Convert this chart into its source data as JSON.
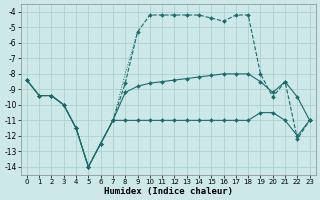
{
  "xlabel": "Humidex (Indice chaleur)",
  "bg_color": "#cce8e8",
  "grid_color": "#aacccc",
  "line_color": "#1a6b6b",
  "xlim": [
    -0.5,
    23.5
  ],
  "ylim": [
    -14.5,
    -3.5
  ],
  "xticks": [
    0,
    1,
    2,
    3,
    4,
    5,
    6,
    7,
    8,
    9,
    10,
    11,
    12,
    13,
    14,
    15,
    16,
    17,
    18,
    19,
    20,
    21,
    22,
    23
  ],
  "yticks": [
    -4,
    -5,
    -6,
    -7,
    -8,
    -9,
    -10,
    -11,
    -12,
    -13,
    -14
  ],
  "line1_x": [
    0,
    1,
    2,
    3,
    4,
    5,
    6,
    7,
    8,
    9,
    10,
    11,
    12,
    13,
    14,
    15,
    16,
    17,
    18,
    19,
    20,
    21,
    22,
    23
  ],
  "line1_y": [
    -8.4,
    -9.4,
    -9.4,
    -10.0,
    -11.5,
    -14.0,
    -12.5,
    -11.0,
    -8.6,
    -5.3,
    -4.2,
    -4.2,
    -4.2,
    -4.2,
    -4.2,
    -4.4,
    -4.6,
    -4.2,
    -4.2,
    -8.0,
    -9.5,
    -8.5,
    -12.2,
    -11.0
  ],
  "line1_style": "--",
  "line2_x": [
    0,
    1,
    2,
    3,
    4,
    5,
    6,
    7,
    8,
    9,
    10,
    11,
    12,
    13,
    14,
    15,
    16,
    17,
    18,
    19,
    20,
    21,
    22,
    23
  ],
  "line2_y": [
    -8.4,
    -9.4,
    -9.4,
    -10.0,
    -11.5,
    -14.0,
    -12.5,
    -11.0,
    -9.2,
    -8.8,
    -8.6,
    -8.5,
    -8.4,
    -8.3,
    -8.2,
    -8.1,
    -8.0,
    -8.0,
    -8.0,
    -8.5,
    -9.2,
    -8.5,
    -9.5,
    -11.0
  ],
  "line2_style": "-",
  "line3_x": [
    0,
    1,
    2,
    3,
    4,
    5,
    6,
    7,
    8,
    9,
    10,
    11,
    12,
    13,
    14,
    15,
    16,
    17,
    18,
    19,
    20,
    21,
    22,
    23
  ],
  "line3_y": [
    -8.4,
    -9.4,
    -9.4,
    -10.0,
    -11.5,
    -14.0,
    -12.5,
    -11.0,
    -11.0,
    -11.0,
    -11.0,
    -11.0,
    -11.0,
    -11.0,
    -11.0,
    -11.0,
    -11.0,
    -11.0,
    -11.0,
    -10.5,
    -10.5,
    -11.0,
    -12.0,
    -11.0
  ],
  "line3_style": "-",
  "dot_line_x": [
    0,
    1,
    2,
    3,
    4,
    5,
    6,
    7,
    8,
    9
  ],
  "dot_line_y": [
    -8.4,
    -9.4,
    -9.4,
    -10.0,
    -11.5,
    -14.0,
    -12.5,
    -11.0,
    -8.0,
    -5.3
  ]
}
